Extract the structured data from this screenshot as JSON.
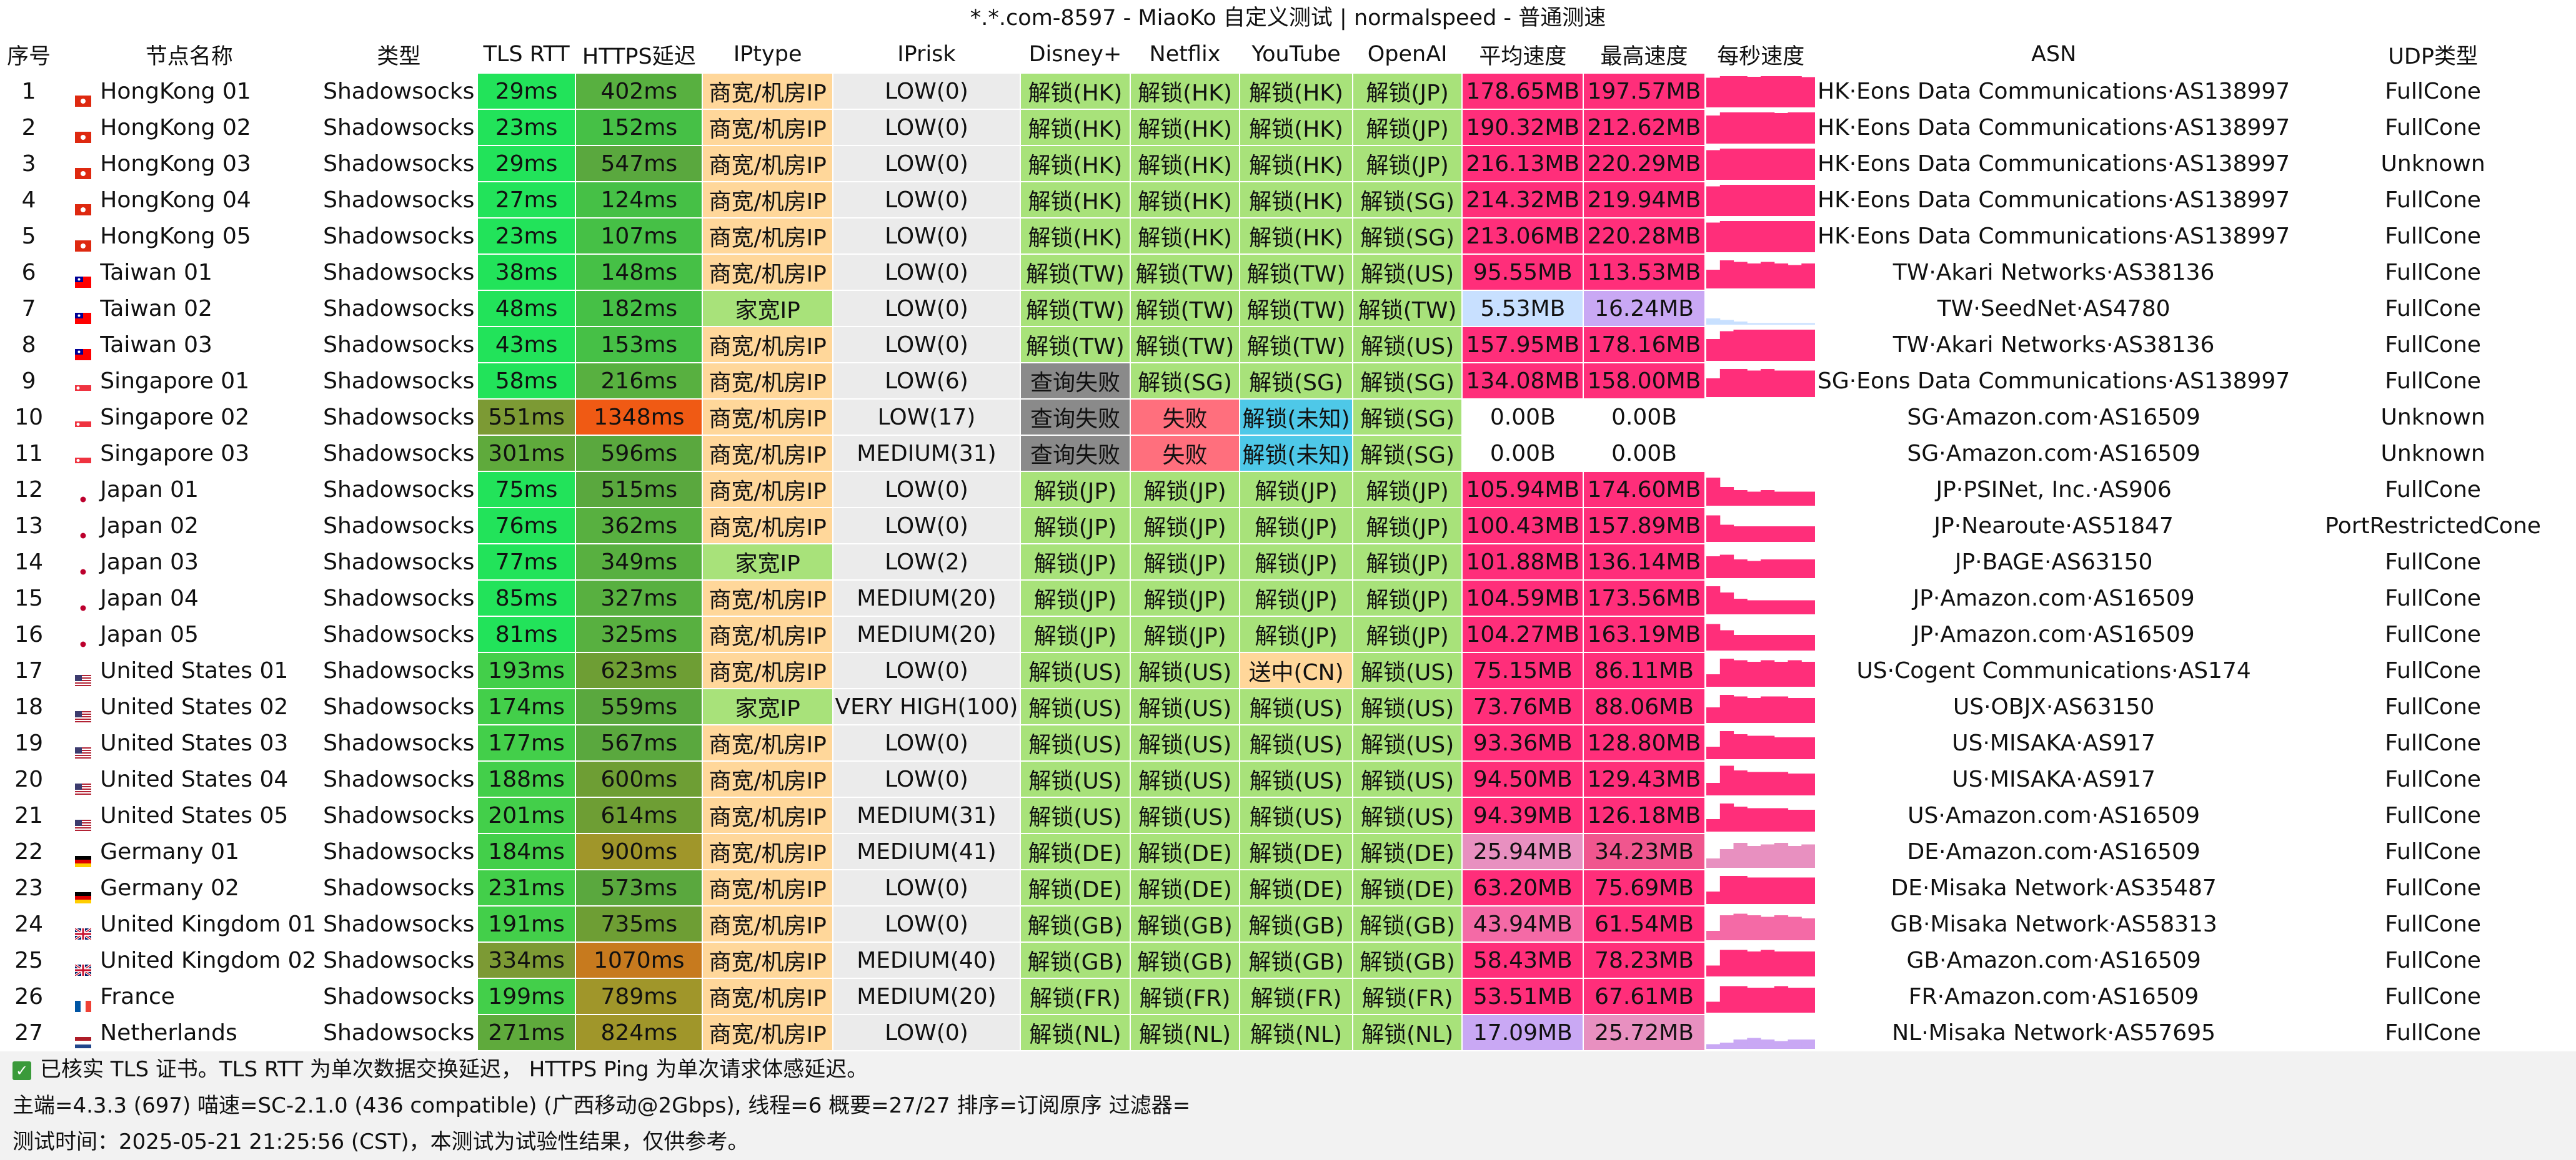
{
  "window": {
    "title": "*.*.com-8597 - MiaoKo 自定义测试 | normalspeed - 普通测速"
  },
  "columns": [
    "序号",
    "节点名称",
    "类型",
    "TLS RTT",
    "HTTPS延迟",
    "IPtype",
    "IPrisk",
    "Disney+",
    "Netflix",
    "YouTube",
    "OpenAI",
    "平均速度",
    "最高速度",
    "每秒速度",
    "ASN",
    "UDP类型"
  ],
  "rows": [
    {
      "no": "1",
      "flag": "HK",
      "name": "HongKong 01",
      "type": "Shadowsocks",
      "tls": "29ms",
      "https": "402ms",
      "iptype": "商宽/机房IP",
      "iprisk": "LOW(0)",
      "disney": "解锁(HK)",
      "netflix": "解锁(HK)",
      "youtube": "解锁(HK)",
      "openai": "解锁(JP)",
      "avg": "178.65MB",
      "max": "197.57MB",
      "speed_profile": [
        0.95,
        1,
        1,
        0.98,
        1,
        1,
        1,
        0.97
      ],
      "asn": "HK·Eons Data Communications·AS138997",
      "udp": "FullCone"
    },
    {
      "no": "2",
      "flag": "HK",
      "name": "HongKong 02",
      "type": "Shadowsocks",
      "tls": "23ms",
      "https": "152ms",
      "iptype": "商宽/机房IP",
      "iprisk": "LOW(0)",
      "disney": "解锁(HK)",
      "netflix": "解锁(HK)",
      "youtube": "解锁(HK)",
      "openai": "解锁(JP)",
      "avg": "190.32MB",
      "max": "212.62MB",
      "speed_profile": [
        0.9,
        1,
        1,
        1,
        1,
        0.98,
        1,
        1
      ],
      "asn": "HK·Eons Data Communications·AS138997",
      "udp": "FullCone"
    },
    {
      "no": "3",
      "flag": "HK",
      "name": "HongKong 03",
      "type": "Shadowsocks",
      "tls": "29ms",
      "https": "547ms",
      "iptype": "商宽/机房IP",
      "iprisk": "LOW(0)",
      "disney": "解锁(HK)",
      "netflix": "解锁(HK)",
      "youtube": "解锁(HK)",
      "openai": "解锁(JP)",
      "avg": "216.13MB",
      "max": "220.29MB",
      "speed_profile": [
        0.95,
        1,
        1,
        1,
        1,
        1,
        1,
        1
      ],
      "asn": "HK·Eons Data Communications·AS138997",
      "udp": "Unknown"
    },
    {
      "no": "4",
      "flag": "HK",
      "name": "HongKong 04",
      "type": "Shadowsocks",
      "tls": "27ms",
      "https": "124ms",
      "iptype": "商宽/机房IP",
      "iprisk": "LOW(0)",
      "disney": "解锁(HK)",
      "netflix": "解锁(HK)",
      "youtube": "解锁(HK)",
      "openai": "解锁(SG)",
      "avg": "214.32MB",
      "max": "219.94MB",
      "speed_profile": [
        0.95,
        1,
        1,
        1,
        1,
        1,
        1,
        1
      ],
      "asn": "HK·Eons Data Communications·AS138997",
      "udp": "FullCone"
    },
    {
      "no": "5",
      "flag": "HK",
      "name": "HongKong 05",
      "type": "Shadowsocks",
      "tls": "23ms",
      "https": "107ms",
      "iptype": "商宽/机房IP",
      "iprisk": "LOW(0)",
      "disney": "解锁(HK)",
      "netflix": "解锁(HK)",
      "youtube": "解锁(HK)",
      "openai": "解锁(SG)",
      "avg": "213.06MB",
      "max": "220.28MB",
      "speed_profile": [
        0.95,
        1,
        1,
        1,
        1,
        1,
        1,
        1
      ],
      "asn": "HK·Eons Data Communications·AS138997",
      "udp": "FullCone"
    },
    {
      "no": "6",
      "flag": "TW",
      "name": "Taiwan 01",
      "type": "Shadowsocks",
      "tls": "38ms",
      "https": "148ms",
      "iptype": "商宽/机房IP",
      "iprisk": "LOW(0)",
      "disney": "解锁(TW)",
      "netflix": "解锁(TW)",
      "youtube": "解锁(TW)",
      "openai": "解锁(US)",
      "avg": "95.55MB",
      "max": "113.53MB",
      "speed_profile": [
        0.6,
        0.9,
        0.85,
        0.8,
        0.85,
        0.8,
        0.75,
        0.8
      ],
      "asn": "TW·Akari Networks·AS38136",
      "udp": "FullCone"
    },
    {
      "no": "7",
      "flag": "TW",
      "name": "Taiwan 02",
      "type": "Shadowsocks",
      "tls": "48ms",
      "https": "182ms",
      "iptype": "家宽IP",
      "iprisk": "LOW(0)",
      "disney": "解锁(TW)",
      "netflix": "解锁(TW)",
      "youtube": "解锁(TW)",
      "openai": "解锁(TW)",
      "avg": "5.53MB",
      "max": "16.24MB",
      "speed_profile": [
        0.2,
        0.15,
        0.1,
        0.05,
        0.05,
        0.05,
        0.05,
        0.05
      ],
      "asn": "TW·SeedNet·AS4780",
      "udp": "FullCone"
    },
    {
      "no": "8",
      "flag": "TW",
      "name": "Taiwan 03",
      "type": "Shadowsocks",
      "tls": "43ms",
      "https": "153ms",
      "iptype": "商宽/机房IP",
      "iprisk": "LOW(0)",
      "disney": "解锁(TW)",
      "netflix": "解锁(TW)",
      "youtube": "解锁(TW)",
      "openai": "解锁(US)",
      "avg": "157.95MB",
      "max": "178.16MB",
      "speed_profile": [
        0.7,
        0.95,
        1,
        1,
        1,
        1,
        1,
        1
      ],
      "asn": "TW·Akari Networks·AS38136",
      "udp": "FullCone"
    },
    {
      "no": "9",
      "flag": "SG",
      "name": "Singapore 01",
      "type": "Shadowsocks",
      "tls": "58ms",
      "https": "216ms",
      "iptype": "商宽/机房IP",
      "iprisk": "LOW(6)",
      "disney": "查询失败",
      "netflix": "解锁(SG)",
      "youtube": "解锁(SG)",
      "openai": "解锁(SG)",
      "avg": "134.08MB",
      "max": "158.00MB",
      "speed_profile": [
        0.6,
        0.9,
        0.9,
        0.85,
        0.9,
        0.85,
        0.85,
        0.85
      ],
      "asn": "SG·Eons Data Communications·AS138997",
      "udp": "FullCone"
    },
    {
      "no": "10",
      "flag": "SG",
      "name": "Singapore 02",
      "type": "Shadowsocks",
      "tls": "551ms",
      "https": "1348ms",
      "iptype": "商宽/机房IP",
      "iprisk": "LOW(17)",
      "disney": "查询失败",
      "netflix": "失败",
      "youtube": "解锁(未知)",
      "openai": "解锁(SG)",
      "avg": "0.00B",
      "max": "0.00B",
      "speed_profile": [],
      "asn": "SG·Amazon.com·AS16509",
      "udp": "Unknown"
    },
    {
      "no": "11",
      "flag": "SG",
      "name": "Singapore 03",
      "type": "Shadowsocks",
      "tls": "301ms",
      "https": "596ms",
      "iptype": "商宽/机房IP",
      "iprisk": "MEDIUM(31)",
      "disney": "查询失败",
      "netflix": "失败",
      "youtube": "解锁(未知)",
      "openai": "解锁(SG)",
      "avg": "0.00B",
      "max": "0.00B",
      "speed_profile": [],
      "asn": "SG·Amazon.com·AS16509",
      "udp": "Unknown"
    },
    {
      "no": "12",
      "flag": "JP",
      "name": "Japan 01",
      "type": "Shadowsocks",
      "tls": "75ms",
      "https": "515ms",
      "iptype": "商宽/机房IP",
      "iprisk": "LOW(0)",
      "disney": "解锁(JP)",
      "netflix": "解锁(JP)",
      "youtube": "解锁(JP)",
      "openai": "解锁(JP)",
      "avg": "105.94MB",
      "max": "174.60MB",
      "speed_profile": [
        0.9,
        0.6,
        0.5,
        0.45,
        0.5,
        0.45,
        0.45,
        0.45
      ],
      "asn": "JP·PSINet, Inc.·AS906",
      "udp": "FullCone"
    },
    {
      "no": "13",
      "flag": "JP",
      "name": "Japan 02",
      "type": "Shadowsocks",
      "tls": "76ms",
      "https": "362ms",
      "iptype": "商宽/机房IP",
      "iprisk": "LOW(0)",
      "disney": "解锁(JP)",
      "netflix": "解锁(JP)",
      "youtube": "解锁(JP)",
      "openai": "解锁(JP)",
      "avg": "100.43MB",
      "max": "157.89MB",
      "speed_profile": [
        0.85,
        0.55,
        0.5,
        0.5,
        0.5,
        0.5,
        0.5,
        0.5
      ],
      "asn": "JP·Nearoute·AS51847",
      "udp": "PortRestrictedCone"
    },
    {
      "no": "14",
      "flag": "JP",
      "name": "Japan 03",
      "type": "Shadowsocks",
      "tls": "77ms",
      "https": "349ms",
      "iptype": "家宽IP",
      "iprisk": "LOW(2)",
      "disney": "解锁(JP)",
      "netflix": "解锁(JP)",
      "youtube": "解锁(JP)",
      "openai": "解锁(JP)",
      "avg": "101.88MB",
      "max": "136.14MB",
      "speed_profile": [
        0.7,
        0.75,
        0.6,
        0.55,
        0.6,
        0.6,
        0.6,
        0.6
      ],
      "asn": "JP·BAGE·AS63150",
      "udp": "FullCone"
    },
    {
      "no": "15",
      "flag": "JP",
      "name": "Japan 04",
      "type": "Shadowsocks",
      "tls": "85ms",
      "https": "327ms",
      "iptype": "商宽/机房IP",
      "iprisk": "MEDIUM(20)",
      "disney": "解锁(JP)",
      "netflix": "解锁(JP)",
      "youtube": "解锁(JP)",
      "openai": "解锁(JP)",
      "avg": "104.59MB",
      "max": "173.56MB",
      "speed_profile": [
        0.9,
        0.7,
        0.5,
        0.45,
        0.45,
        0.45,
        0.45,
        0.45
      ],
      "asn": "JP·Amazon.com·AS16509",
      "udp": "FullCone"
    },
    {
      "no": "16",
      "flag": "JP",
      "name": "Japan 05",
      "type": "Shadowsocks",
      "tls": "81ms",
      "https": "325ms",
      "iptype": "商宽/机房IP",
      "iprisk": "MEDIUM(20)",
      "disney": "解锁(JP)",
      "netflix": "解锁(JP)",
      "youtube": "解锁(JP)",
      "openai": "解锁(JP)",
      "avg": "104.27MB",
      "max": "163.19MB",
      "speed_profile": [
        0.85,
        0.65,
        0.5,
        0.5,
        0.5,
        0.5,
        0.5,
        0.5
      ],
      "asn": "JP·Amazon.com·AS16509",
      "udp": "FullCone"
    },
    {
      "no": "17",
      "flag": "US",
      "name": "United States 01",
      "type": "Shadowsocks",
      "tls": "193ms",
      "https": "623ms",
      "iptype": "商宽/机房IP",
      "iprisk": "LOW(0)",
      "disney": "解锁(US)",
      "netflix": "解锁(US)",
      "youtube": "送中(CN)",
      "openai": "解锁(US)",
      "avg": "75.15MB",
      "max": "86.11MB",
      "speed_profile": [
        0.4,
        0.9,
        0.85,
        0.8,
        0.85,
        0.8,
        0.85,
        0.8
      ],
      "asn": "US·Cogent Communications·AS174",
      "udp": "FullCone"
    },
    {
      "no": "18",
      "flag": "US",
      "name": "United States 02",
      "type": "Shadowsocks",
      "tls": "174ms",
      "https": "559ms",
      "iptype": "家宽IP",
      "iprisk": "VERY HIGH(100)",
      "disney": "解锁(US)",
      "netflix": "解锁(US)",
      "youtube": "解锁(US)",
      "openai": "解锁(US)",
      "avg": "73.76MB",
      "max": "88.06MB",
      "speed_profile": [
        0.5,
        0.9,
        0.85,
        0.8,
        0.85,
        0.85,
        0.8,
        0.8
      ],
      "asn": "US·OBJX·AS63150",
      "udp": "FullCone"
    },
    {
      "no": "19",
      "flag": "US",
      "name": "United States 03",
      "type": "Shadowsocks",
      "tls": "177ms",
      "https": "567ms",
      "iptype": "商宽/机房IP",
      "iprisk": "LOW(0)",
      "disney": "解锁(US)",
      "netflix": "解锁(US)",
      "youtube": "解锁(US)",
      "openai": "解锁(US)",
      "avg": "93.36MB",
      "max": "128.80MB",
      "speed_profile": [
        0.4,
        0.9,
        0.8,
        0.75,
        0.75,
        0.7,
        0.7,
        0.7
      ],
      "asn": "US·MISAKA·AS917",
      "udp": "FullCone"
    },
    {
      "no": "20",
      "flag": "US",
      "name": "United States 04",
      "type": "Shadowsocks",
      "tls": "188ms",
      "https": "600ms",
      "iptype": "商宽/机房IP",
      "iprisk": "LOW(0)",
      "disney": "解锁(US)",
      "netflix": "解锁(US)",
      "youtube": "解锁(US)",
      "openai": "解锁(US)",
      "avg": "94.50MB",
      "max": "129.43MB",
      "speed_profile": [
        0.4,
        0.95,
        0.8,
        0.75,
        0.75,
        0.75,
        0.7,
        0.7
      ],
      "asn": "US·MISAKA·AS917",
      "udp": "FullCone"
    },
    {
      "no": "21",
      "flag": "US",
      "name": "United States 05",
      "type": "Shadowsocks",
      "tls": "201ms",
      "https": "614ms",
      "iptype": "商宽/机房IP",
      "iprisk": "MEDIUM(31)",
      "disney": "解锁(US)",
      "netflix": "解锁(US)",
      "youtube": "解锁(US)",
      "openai": "解锁(US)",
      "avg": "94.39MB",
      "max": "126.18MB",
      "speed_profile": [
        0.4,
        0.9,
        0.8,
        0.75,
        0.75,
        0.75,
        0.7,
        0.7
      ],
      "asn": "US·Amazon.com·AS16509",
      "udp": "FullCone"
    },
    {
      "no": "22",
      "flag": "DE",
      "name": "Germany 01",
      "type": "Shadowsocks",
      "tls": "184ms",
      "https": "900ms",
      "iptype": "商宽/机房IP",
      "iprisk": "MEDIUM(41)",
      "disney": "解锁(DE)",
      "netflix": "解锁(DE)",
      "youtube": "解锁(DE)",
      "openai": "解锁(DE)",
      "avg": "25.94MB",
      "max": "34.23MB",
      "speed_profile": [
        0.3,
        0.6,
        0.8,
        0.7,
        0.75,
        0.8,
        0.7,
        0.75
      ],
      "asn": "DE·Amazon.com·AS16509",
      "udp": "FullCone"
    },
    {
      "no": "23",
      "flag": "DE",
      "name": "Germany 02",
      "type": "Shadowsocks",
      "tls": "231ms",
      "https": "573ms",
      "iptype": "商宽/机房IP",
      "iprisk": "LOW(0)",
      "disney": "解锁(DE)",
      "netflix": "解锁(DE)",
      "youtube": "解锁(DE)",
      "openai": "解锁(DE)",
      "avg": "63.20MB",
      "max": "75.69MB",
      "speed_profile": [
        0.4,
        0.9,
        0.9,
        0.85,
        0.85,
        0.85,
        0.85,
        0.85
      ],
      "asn": "DE·Misaka Network·AS35487",
      "udp": "FullCone"
    },
    {
      "no": "24",
      "flag": "GB",
      "name": "United Kingdom 01",
      "type": "Shadowsocks",
      "tls": "191ms",
      "https": "735ms",
      "iptype": "商宽/机房IP",
      "iprisk": "LOW(0)",
      "disney": "解锁(GB)",
      "netflix": "解锁(GB)",
      "youtube": "解锁(GB)",
      "openai": "解锁(GB)",
      "avg": "43.94MB",
      "max": "61.54MB",
      "speed_profile": [
        0.3,
        0.8,
        0.85,
        0.8,
        0.75,
        0.8,
        0.75,
        0.7
      ],
      "asn": "GB·Misaka Network·AS58313",
      "udp": "FullCone"
    },
    {
      "no": "25",
      "flag": "GB",
      "name": "United Kingdom 02",
      "type": "Shadowsocks",
      "tls": "334ms",
      "https": "1070ms",
      "iptype": "商宽/机房IP",
      "iprisk": "MEDIUM(40)",
      "disney": "解锁(GB)",
      "netflix": "解锁(GB)",
      "youtube": "解锁(GB)",
      "openai": "解锁(GB)",
      "avg": "58.43MB",
      "max": "78.23MB",
      "speed_profile": [
        0.35,
        0.85,
        0.85,
        0.8,
        0.85,
        0.8,
        0.8,
        0.8
      ],
      "asn": "GB·Amazon.com·AS16509",
      "udp": "FullCone"
    },
    {
      "no": "26",
      "flag": "FR",
      "name": "France",
      "type": "Shadowsocks",
      "tls": "199ms",
      "https": "789ms",
      "iptype": "商宽/机房IP",
      "iprisk": "MEDIUM(20)",
      "disney": "解锁(FR)",
      "netflix": "解锁(FR)",
      "youtube": "解锁(FR)",
      "openai": "解锁(FR)",
      "avg": "53.51MB",
      "max": "67.61MB",
      "speed_profile": [
        0.35,
        0.85,
        0.85,
        0.8,
        0.8,
        0.85,
        0.8,
        0.8
      ],
      "asn": "FR·Amazon.com·AS16509",
      "udp": "FullCone"
    },
    {
      "no": "27",
      "flag": "NL",
      "name": "Netherlands",
      "type": "Shadowsocks",
      "tls": "271ms",
      "https": "824ms",
      "iptype": "商宽/机房IP",
      "iprisk": "LOW(0)",
      "disney": "解锁(NL)",
      "netflix": "解锁(NL)",
      "youtube": "解锁(NL)",
      "openai": "解锁(NL)",
      "avg": "17.09MB",
      "max": "25.72MB",
      "speed_profile": [
        0.15,
        0.2,
        0.3,
        0.35,
        0.3,
        0.25,
        0.3,
        0.3
      ],
      "asn": "NL·Misaka Network·AS57695",
      "udp": "FullCone"
    }
  ],
  "footer": {
    "line1": "已核实 TLS 证书。TLS RTT 为单次数据交换延迟， HTTPS Ping 为单次请求体感延迟。",
    "line2": "主端=4.3.3 (697) 喵速=SC-2.1.0 (436 compatible) (广西移动@2Gbps), 线程=6 概要=27/27 排序=订阅原序 过滤器=",
    "line3": "测试时间：2025-05-21 21:25:56 (CST)，本测试为试验性结果，仅供参考。"
  },
  "colors": {
    "unlock": "#a8e27a",
    "fail_query": "#8a8a8a",
    "fail": "#ff6f7d",
    "unknown_unlock": "#4ec8e8",
    "send_cn": "#ffd79a",
    "iptype": "#ffd79a",
    "iprisk": "#ebebeb",
    "speed_high": "#ff2e7a"
  }
}
